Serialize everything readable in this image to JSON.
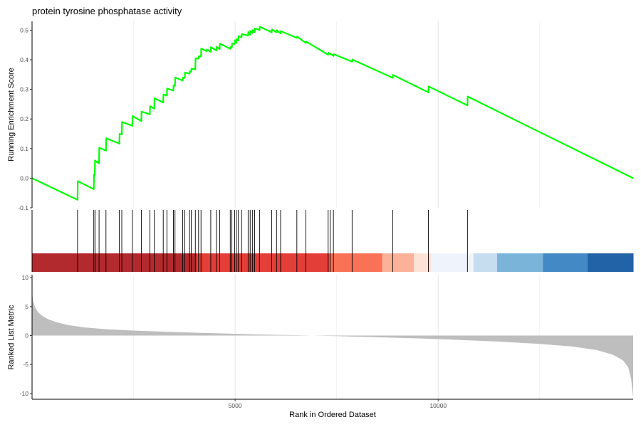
{
  "chart_data": {
    "type": "line",
    "title": "protein tyrosine phosphatase activity",
    "xlabel": "Rank in Ordered Dataset",
    "xlim": [
      0,
      14800
    ],
    "x_ticks": [
      5000,
      10000
    ],
    "x_tick_labels": [
      "5000",
      "10000"
    ],
    "grid": "vertical major + minor gridlines",
    "enrichment_panel": {
      "ylabel": "Running Enrichment Score",
      "ylim": [
        -0.1,
        0.53
      ],
      "y_ticks": [
        -0.1,
        0.0,
        0.1,
        0.2,
        0.3,
        0.4,
        0.5
      ],
      "y_tick_labels": [
        "-0.1",
        "0.0",
        "0.1",
        "0.2",
        "0.3",
        "0.4",
        "0.5"
      ],
      "line_color": "#00ff00",
      "series": [
        {
          "x": [
            0,
            1120,
            1125,
            1520,
            1525,
            1530,
            1545,
            1550,
            1610,
            1615,
            1650,
            1655,
            1820,
            1825,
            2150,
            2155,
            2210,
            2215,
            2470,
            2475,
            2690,
            2695,
            2900,
            2905,
            3010,
            3015,
            3230,
            3235,
            3320,
            3325,
            3480,
            3485,
            3520,
            3525,
            3710,
            3715,
            3760,
            3765,
            3880,
            3885,
            3920,
            3925,
            4020,
            4025,
            4100,
            4105,
            4160,
            4165,
            4300,
            4305,
            4400,
            4405,
            4540,
            4545,
            4620,
            4625,
            4880,
            4885,
            4920,
            4925,
            4990,
            4995,
            5030,
            5035,
            5080,
            5085,
            5160,
            5165,
            5320,
            5325,
            5370,
            5375,
            5430,
            5435,
            5480,
            5485,
            5600,
            5605,
            5900,
            5905,
            6020,
            6025,
            6120,
            6125,
            6520,
            6525,
            6740,
            6745,
            7290,
            7295,
            7340,
            7345,
            7420,
            7425,
            7880,
            7885,
            8880,
            8885,
            9760,
            9765,
            10720,
            10725,
            14800
          ],
          "values": [
            0.0,
            -0.073,
            -0.01,
            -0.037,
            0.012,
            0.014,
            0.012,
            0.06,
            0.053,
            0.057,
            0.05,
            0.103,
            0.093,
            0.135,
            0.117,
            0.15,
            0.148,
            0.19,
            0.177,
            0.21,
            0.193,
            0.225,
            0.216,
            0.243,
            0.235,
            0.27,
            0.256,
            0.283,
            0.279,
            0.303,
            0.296,
            0.314,
            0.312,
            0.34,
            0.33,
            0.34,
            0.339,
            0.357,
            0.353,
            0.361,
            0.36,
            0.37,
            0.368,
            0.405,
            0.404,
            0.412,
            0.411,
            0.438,
            0.429,
            0.435,
            0.427,
            0.443,
            0.431,
            0.444,
            0.436,
            0.455,
            0.437,
            0.443,
            0.442,
            0.455,
            0.454,
            0.466,
            0.457,
            0.47,
            0.465,
            0.48,
            0.477,
            0.487,
            0.482,
            0.494,
            0.485,
            0.498,
            0.49,
            0.5,
            0.494,
            0.506,
            0.501,
            0.512,
            0.493,
            0.503,
            0.493,
            0.5,
            0.489,
            0.497,
            0.474,
            0.479,
            0.457,
            0.462,
            0.417,
            0.424,
            0.419,
            0.421,
            0.413,
            0.419,
            0.394,
            0.401,
            0.339,
            0.349,
            0.29,
            0.31,
            0.246,
            0.276,
            0.0
          ]
        }
      ]
    },
    "hits": [
      1120,
      1520,
      1550,
      1650,
      1820,
      2150,
      2210,
      2470,
      2690,
      2900,
      3010,
      3230,
      3320,
      3480,
      3520,
      3710,
      3760,
      3880,
      3920,
      4020,
      4100,
      4160,
      4400,
      4540,
      4620,
      4880,
      4920,
      4990,
      5030,
      5080,
      5160,
      5320,
      5370,
      5430,
      5480,
      5600,
      5900,
      6020,
      6120,
      6520,
      6740,
      7290,
      7340,
      7420,
      7880,
      8880,
      9760,
      10720
    ],
    "rank_color_bands": [
      {
        "from": 0,
        "to": 4050,
        "color": "#b2292e"
      },
      {
        "from": 4050,
        "to": 7320,
        "color": "#e33e38"
      },
      {
        "from": 7320,
        "to": 8620,
        "color": "#fa7256"
      },
      {
        "from": 8620,
        "to": 9400,
        "color": "#fcb299"
      },
      {
        "from": 9400,
        "to": 9820,
        "color": "#fee2d6"
      },
      {
        "from": 9820,
        "to": 10870,
        "color": "#eff3fb"
      },
      {
        "from": 10870,
        "to": 11450,
        "color": "#c6dcef"
      },
      {
        "from": 11450,
        "to": 12580,
        "color": "#7ab4d9"
      },
      {
        "from": 12580,
        "to": 13680,
        "color": "#4289c5"
      },
      {
        "from": 13680,
        "to": 14800,
        "color": "#2262a7"
      }
    ],
    "ranked_metric_panel": {
      "ylabel": "Ranked List Metric",
      "ylim": [
        -11,
        10.5
      ],
      "y_ticks": [
        10,
        5,
        0,
        -5,
        -10
      ],
      "y_tick_labels": [
        "10",
        "5",
        "0",
        "-5",
        "-10"
      ],
      "fill_color": "#bebebe",
      "curve": {
        "x": [
          0,
          30,
          80,
          150,
          250,
          400,
          600,
          900,
          1300,
          1800,
          2500,
          3500,
          4500,
          5500,
          6500,
          7500,
          8500,
          9500,
          10500,
          11500,
          12500,
          13300,
          13900,
          14300,
          14550,
          14680,
          14750,
          14800
        ],
        "values": [
          7.5,
          5.8,
          4.8,
          4.0,
          3.4,
          2.8,
          2.3,
          1.8,
          1.4,
          1.1,
          0.85,
          0.6,
          0.4,
          0.2,
          0.05,
          -0.1,
          -0.3,
          -0.5,
          -0.75,
          -1.05,
          -1.45,
          -1.9,
          -2.5,
          -3.3,
          -4.3,
          -5.5,
          -7.5,
          -10.8
        ]
      }
    }
  }
}
